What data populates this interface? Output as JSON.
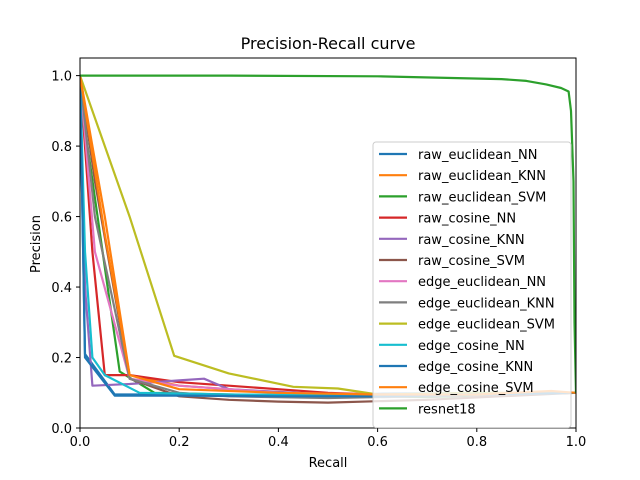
{
  "chart_data": {
    "type": "line",
    "title": "Precision-Recall curve",
    "xlabel": "Recall",
    "ylabel": "Precision",
    "xlim": [
      0,
      1
    ],
    "ylim": [
      0,
      1.05
    ],
    "xticks": [
      "0.0",
      "0.2",
      "0.4",
      "0.6",
      "0.8",
      "1.0"
    ],
    "yticks": [
      "0.0",
      "0.2",
      "0.4",
      "0.6",
      "0.8",
      "1.0"
    ],
    "grid": false,
    "legend_position": "center-right",
    "series": [
      {
        "name": "raw_euclidean_NN",
        "color": "#1f77b4",
        "x": [
          0,
          0.01,
          0.07,
          0.2,
          0.4,
          0.6,
          0.8,
          1.0
        ],
        "y": [
          1.0,
          0.21,
          0.095,
          0.095,
          0.094,
          0.097,
          0.099,
          0.1
        ]
      },
      {
        "name": "raw_euclidean_KNN",
        "color": "#ff7f0e",
        "x": [
          0,
          0.05,
          0.1,
          0.2,
          0.3,
          0.5,
          0.6,
          0.7,
          0.8,
          1.0
        ],
        "y": [
          1.0,
          0.6,
          0.15,
          0.12,
          0.11,
          0.09,
          0.09,
          0.09,
          0.095,
          0.1
        ]
      },
      {
        "name": "raw_euclidean_SVM",
        "color": "#2ca02c",
        "x": [
          0,
          0.01,
          0.08,
          0.15,
          0.3,
          0.5,
          0.7,
          1.0
        ],
        "y": [
          1.0,
          0.85,
          0.16,
          0.1,
          0.095,
          0.09,
          0.088,
          0.1
        ]
      },
      {
        "name": "raw_cosine_NN",
        "color": "#d62728",
        "x": [
          0,
          0.025,
          0.05,
          0.1,
          0.2,
          0.3,
          0.5,
          0.7,
          1.0
        ],
        "y": [
          1.0,
          0.5,
          0.15,
          0.15,
          0.13,
          0.12,
          0.1,
          0.09,
          0.1
        ]
      },
      {
        "name": "raw_cosine_KNN",
        "color": "#9467bd",
        "x": [
          0,
          0.01,
          0.025,
          0.1,
          0.2,
          0.25,
          0.3,
          0.5,
          0.7,
          1.0
        ],
        "y": [
          1.0,
          0.4,
          0.12,
          0.125,
          0.135,
          0.14,
          0.11,
          0.095,
          0.09,
          0.1
        ]
      },
      {
        "name": "raw_cosine_SVM",
        "color": "#8c564b",
        "x": [
          0,
          0.03,
          0.1,
          0.2,
          0.3,
          0.4,
          0.5,
          0.7,
          1.0
        ],
        "y": [
          1.0,
          0.7,
          0.14,
          0.09,
          0.08,
          0.075,
          0.072,
          0.08,
          0.1
        ]
      },
      {
        "name": "edge_euclidean_NN",
        "color": "#e377c2",
        "x": [
          0,
          0.03,
          0.1,
          0.2,
          0.4,
          0.6,
          0.8,
          1.0
        ],
        "y": [
          1.0,
          0.5,
          0.14,
          0.12,
          0.1,
          0.095,
          0.097,
          0.1
        ]
      },
      {
        "name": "edge_euclidean_KNN",
        "color": "#7f7f7f",
        "x": [
          0,
          0.03,
          0.1,
          0.2,
          0.3,
          0.5,
          0.7,
          1.0
        ],
        "y": [
          1.0,
          0.6,
          0.14,
          0.1,
          0.09,
          0.085,
          0.09,
          0.1
        ]
      },
      {
        "name": "edge_euclidean_SVM",
        "color": "#bcbd22",
        "x": [
          0,
          0.1,
          0.19,
          0.3,
          0.43,
          0.52,
          0.6,
          0.8,
          1.0
        ],
        "y": [
          1.0,
          0.6,
          0.205,
          0.155,
          0.117,
          0.112,
          0.095,
          0.1,
          0.1
        ]
      },
      {
        "name": "edge_cosine_NN",
        "color": "#17becf",
        "x": [
          0,
          0.01,
          0.025,
          0.05,
          0.12,
          0.3,
          0.5,
          0.7,
          1.0
        ],
        "y": [
          1.0,
          0.5,
          0.2,
          0.15,
          0.1,
          0.095,
          0.093,
          0.095,
          0.1
        ]
      },
      {
        "name": "edge_cosine_KNN",
        "color": "#1f77b4",
        "x": [
          0,
          0.01,
          0.07,
          0.2,
          0.4,
          0.6,
          0.8,
          1.0
        ],
        "y": [
          1.0,
          0.2,
          0.092,
          0.092,
          0.09,
          0.09,
          0.095,
          0.1
        ]
      },
      {
        "name": "edge_cosine_SVM",
        "color": "#ff7f0e",
        "x": [
          0,
          0.05,
          0.1,
          0.2,
          0.4,
          0.6,
          0.8,
          0.95,
          1.0
        ],
        "y": [
          1.0,
          0.55,
          0.15,
          0.11,
          0.1,
          0.095,
          0.095,
          0.105,
          0.1
        ]
      },
      {
        "name": "resnet18",
        "color": "#2ca02c",
        "x": [
          0,
          0.3,
          0.6,
          0.85,
          0.9,
          0.94,
          0.97,
          0.985,
          0.99,
          0.995,
          0.997,
          1.0
        ],
        "y": [
          1.0,
          1.0,
          0.998,
          0.99,
          0.985,
          0.975,
          0.965,
          0.955,
          0.9,
          0.7,
          0.3,
          0.1
        ]
      }
    ]
  }
}
